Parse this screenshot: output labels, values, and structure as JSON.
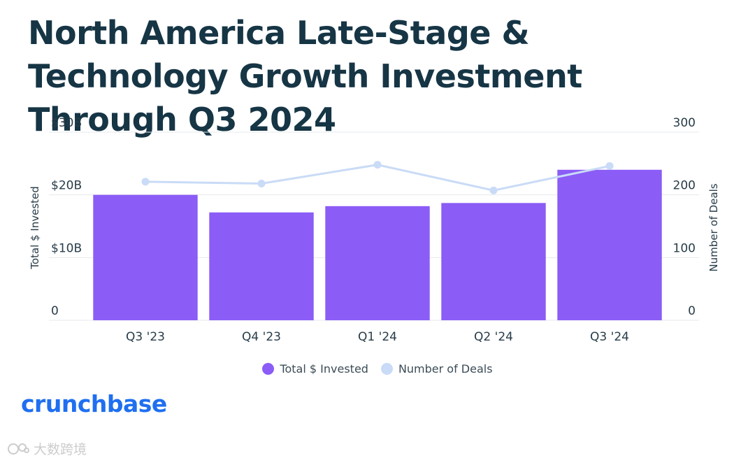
{
  "title": "North America Late-Stage & Technology Growth Investment Through Q3 2024",
  "brand": "crunchbase",
  "watermark": "大数跨境",
  "colors": {
    "bar": "#8b5cf6",
    "line": "#c9dbf6",
    "title": "#163545",
    "brand": "#1f6ff0"
  },
  "legend": [
    {
      "label": "Total $ Invested",
      "color": "#8b5cf6"
    },
    {
      "label": "Number of Deals",
      "color": "#c9dbf6"
    }
  ],
  "chart_data": {
    "type": "bar",
    "title": "North America Late-Stage & Technology Growth Investment Through Q3 2024",
    "categories": [
      "Q3 '23",
      "Q4 '23",
      "Q1 '24",
      "Q2 '24",
      "Q3 '24"
    ],
    "series": [
      {
        "name": "Total $ Invested",
        "type": "bar",
        "axis": "left",
        "values": [
          20.0,
          17.2,
          18.2,
          18.7,
          24.0
        ]
      },
      {
        "name": "Number of Deals",
        "type": "line",
        "axis": "right",
        "values": [
          221,
          218,
          248,
          207,
          246
        ]
      }
    ],
    "ylabel": "Total $ Invested",
    "ylabel_right": "Number of Deals",
    "ylim": [
      0,
      30
    ],
    "ylim_right": [
      0,
      300
    ],
    "yticks": [
      "0",
      "$10B",
      "$20B",
      "$30B"
    ],
    "yticks_right": [
      "0",
      "100",
      "200",
      "300"
    ],
    "grid": true,
    "legend_position": "bottom-center"
  }
}
